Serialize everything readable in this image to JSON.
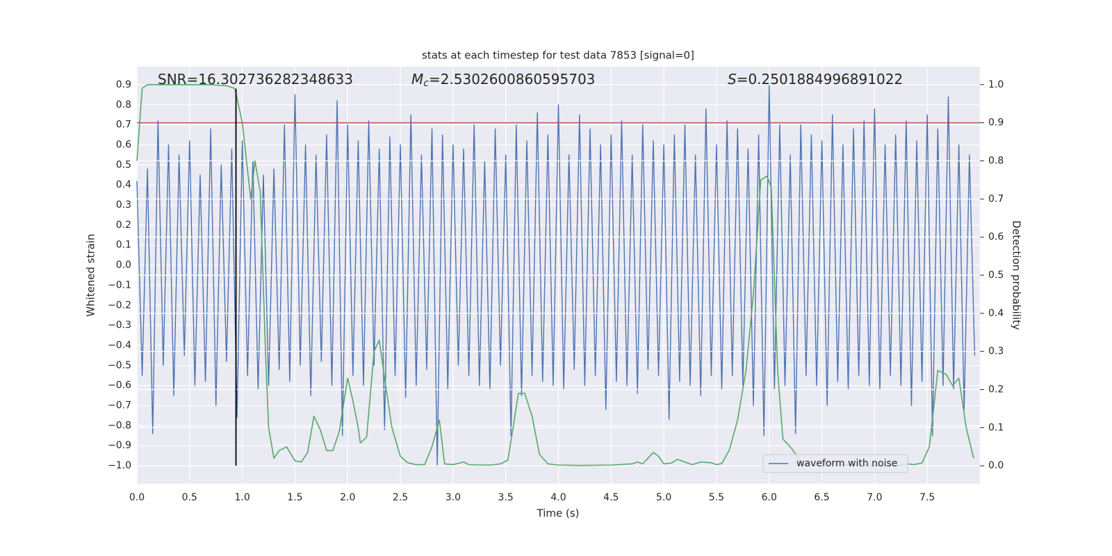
{
  "chart_data": {
    "type": "line",
    "title": "stats at each timestep for test data 7853 [signal=0]",
    "xlabel": "Time (s)",
    "ylabel": "Whitened strain",
    "y2label": "Detection probability",
    "xlim": [
      0,
      8.0
    ],
    "ylim": [
      -1.09,
      0.99
    ],
    "y2lim": [
      -0.047,
      1.047
    ],
    "xticks": [
      {
        "value": 0,
        "label": "0.0"
      },
      {
        "value": 0.5,
        "label": "0.5"
      },
      {
        "value": 1,
        "label": "1.0"
      },
      {
        "value": 1.5,
        "label": "1.5"
      },
      {
        "value": 2,
        "label": "2.0"
      },
      {
        "value": 2.5,
        "label": "2.5"
      },
      {
        "value": 3,
        "label": "3.0"
      },
      {
        "value": 3.5,
        "label": "3.5"
      },
      {
        "value": 4,
        "label": "4.0"
      },
      {
        "value": 4.5,
        "label": "4.5"
      },
      {
        "value": 5,
        "label": "5.0"
      },
      {
        "value": 5.5,
        "label": "5.5"
      },
      {
        "value": 6,
        "label": "6.0"
      },
      {
        "value": 6.5,
        "label": "6.5"
      },
      {
        "value": 7,
        "label": "7.0"
      },
      {
        "value": 7.5,
        "label": "7.5"
      }
    ],
    "yticks": [
      {
        "value": -1.0,
        "label": "−1.0"
      },
      {
        "value": -0.9,
        "label": "−0.9"
      },
      {
        "value": -0.8,
        "label": "−0.8"
      },
      {
        "value": -0.7,
        "label": "−0.7"
      },
      {
        "value": -0.6,
        "label": "−0.6"
      },
      {
        "value": -0.5,
        "label": "−0.5"
      },
      {
        "value": -0.4,
        "label": "−0.4"
      },
      {
        "value": -0.3,
        "label": "−0.3"
      },
      {
        "value": -0.2,
        "label": "−0.2"
      },
      {
        "value": -0.1,
        "label": "−0.1"
      },
      {
        "value": 0,
        "label": "0.0"
      },
      {
        "value": 0.1,
        "label": "0.1"
      },
      {
        "value": 0.2,
        "label": "0.2"
      },
      {
        "value": 0.3,
        "label": "0.3"
      },
      {
        "value": 0.4,
        "label": "0.4"
      },
      {
        "value": 0.5,
        "label": "0.5"
      },
      {
        "value": 0.6,
        "label": "0.6"
      },
      {
        "value": 0.7,
        "label": "0.7"
      },
      {
        "value": 0.8,
        "label": "0.8"
      },
      {
        "value": 0.9,
        "label": "0.9"
      }
    ],
    "y2ticks": [
      {
        "value": 0,
        "label": "0.0"
      },
      {
        "value": 0.1,
        "label": "0.1"
      },
      {
        "value": 0.2,
        "label": "0.2"
      },
      {
        "value": 0.3,
        "label": "0.3"
      },
      {
        "value": 0.4,
        "label": "0.4"
      },
      {
        "value": 0.5,
        "label": "0.5"
      },
      {
        "value": 0.6,
        "label": "0.6"
      },
      {
        "value": 0.7,
        "label": "0.7"
      },
      {
        "value": 0.8,
        "label": "0.8"
      },
      {
        "value": 0.9,
        "label": "0.9"
      },
      {
        "value": 1,
        "label": "1.0"
      }
    ],
    "grid": true,
    "legend": "lower right",
    "annotations": [
      {
        "text": "SNR=16.302736282348633"
      },
      {
        "symbol": "M",
        "subscript": "c",
        "text": "=2.5302600860595703"
      },
      {
        "symbol": "S",
        "text": "=0.2501884996891022"
      }
    ],
    "hlines": [
      {
        "y": 0.9,
        "axis": "y2",
        "color": "#c44e52"
      }
    ],
    "vlines": [
      {
        "x": 0.94,
        "ymin": -1.0,
        "ymax": 0.88,
        "color": "#000000"
      }
    ],
    "series": [
      {
        "name": "waveform with noise",
        "color": "#4c72b0",
        "x": [
          0,
          0.05,
          0.1,
          0.15,
          0.2,
          0.25,
          0.3,
          0.35,
          0.4,
          0.45,
          0.5,
          0.55,
          0.6,
          0.65,
          0.7,
          0.75,
          0.8,
          0.85,
          0.9,
          0.95,
          1,
          1.05,
          1.1,
          1.15,
          1.2,
          1.25,
          1.3,
          1.35,
          1.4,
          1.45,
          1.5,
          1.55,
          1.6,
          1.65,
          1.7,
          1.75,
          1.8,
          1.85,
          1.9,
          1.95,
          2,
          2.05,
          2.1,
          2.15,
          2.2,
          2.25,
          2.3,
          2.35,
          2.4,
          2.45,
          2.5,
          2.55,
          2.6,
          2.65,
          2.7,
          2.75,
          2.8,
          2.85,
          2.9,
          2.95,
          3,
          3.05,
          3.1,
          3.15,
          3.2,
          3.25,
          3.3,
          3.35,
          3.4,
          3.45,
          3.5,
          3.55,
          3.6,
          3.65,
          3.7,
          3.75,
          3.8,
          3.85,
          3.9,
          3.95,
          4,
          4.05,
          4.1,
          4.15,
          4.2,
          4.25,
          4.3,
          4.35,
          4.4,
          4.45,
          4.5,
          4.55,
          4.6,
          4.65,
          4.7,
          4.75,
          4.8,
          4.85,
          4.9,
          4.95,
          5,
          5.05,
          5.1,
          5.15,
          5.2,
          5.25,
          5.3,
          5.35,
          5.4,
          5.45,
          5.5,
          5.55,
          5.6,
          5.65,
          5.7,
          5.75,
          5.8,
          5.85,
          5.9,
          5.95,
          6,
          6.05,
          6.1,
          6.15,
          6.2,
          6.25,
          6.3,
          6.35,
          6.4,
          6.45,
          6.5,
          6.55,
          6.6,
          6.65,
          6.7,
          6.75,
          6.8,
          6.85,
          6.9,
          6.95,
          7,
          7.05,
          7.1,
          7.15,
          7.2,
          7.25,
          7.3,
          7.35,
          7.4,
          7.45,
          7.5,
          7.55,
          7.6,
          7.65,
          7.7,
          7.75,
          7.8,
          7.85,
          7.9,
          7.95
        ],
        "values": [
          0.42,
          -0.55,
          0.48,
          -0.84,
          0.72,
          -0.5,
          0.6,
          -0.65,
          0.55,
          -0.45,
          0.62,
          -0.6,
          0.45,
          -0.58,
          0.68,
          -0.7,
          0.5,
          -0.48,
          0.58,
          -0.76,
          0.62,
          -0.55,
          0.52,
          -0.62,
          0.45,
          -0.6,
          0.48,
          -0.52,
          0.7,
          -0.58,
          0.85,
          -0.5,
          0.6,
          -0.65,
          0.55,
          -0.48,
          0.65,
          -0.6,
          0.82,
          -0.85,
          0.7,
          -0.55,
          0.62,
          -0.6,
          0.72,
          -0.5,
          0.58,
          -0.82,
          0.64,
          -0.55,
          0.6,
          -0.66,
          0.75,
          -0.6,
          0.55,
          -0.52,
          0.68,
          -1.0,
          0.65,
          -0.62,
          0.6,
          -0.5,
          0.58,
          -0.55,
          0.7,
          -0.6,
          0.52,
          -0.62,
          0.68,
          -0.5,
          0.55,
          -0.85,
          0.7,
          -0.65,
          0.62,
          -0.55,
          0.76,
          -0.58,
          0.65,
          -0.6,
          0.8,
          -0.62,
          0.55,
          -0.52,
          0.75,
          -0.6,
          0.68,
          -0.55,
          0.6,
          -0.72,
          0.65,
          -0.58,
          0.72,
          -0.6,
          0.55,
          -0.64,
          0.7,
          -0.52,
          0.62,
          -0.55,
          0.6,
          -0.77,
          0.65,
          -0.58,
          0.7,
          -0.6,
          0.55,
          -0.65,
          0.78,
          -0.55,
          0.6,
          -0.62,
          0.72,
          -0.55,
          0.68,
          -0.6,
          0.58,
          -0.7,
          0.65,
          -0.85,
          0.9,
          -0.62,
          0.7,
          -0.6,
          0.55,
          -0.84,
          0.7,
          -0.55,
          0.65,
          -0.6,
          0.62,
          -0.7,
          0.75,
          -0.58,
          0.6,
          -0.62,
          0.68,
          -0.55,
          0.72,
          -0.6,
          0.78,
          -0.62,
          0.6,
          -0.55,
          0.65,
          -0.6,
          0.72,
          -0.7,
          0.62,
          -0.58,
          0.75,
          -0.85,
          0.68,
          -0.6,
          0.84,
          -0.62,
          0.6,
          -0.72,
          0.55,
          -0.45
        ]
      },
      {
        "color": "#55a868",
        "axis": "y2",
        "x": [
          0,
          0.05,
          0.1,
          0.3,
          0.5,
          0.7,
          0.85,
          0.93,
          1.0,
          1.08,
          1.12,
          1.17,
          1.22,
          1.25,
          1.3,
          1.35,
          1.42,
          1.5,
          1.56,
          1.62,
          1.68,
          1.74,
          1.8,
          1.86,
          1.92,
          2.0,
          2.05,
          2.1,
          2.12,
          2.18,
          2.25,
          2.3,
          2.35,
          2.42,
          2.5,
          2.57,
          2.65,
          2.73,
          2.8,
          2.87,
          2.92,
          3.0,
          3.1,
          3.15,
          3.25,
          3.35,
          3.45,
          3.52,
          3.57,
          3.62,
          3.68,
          3.75,
          3.82,
          3.9,
          4.0,
          4.2,
          4.5,
          4.7,
          4.75,
          4.8,
          4.9,
          4.95,
          5.0,
          5.07,
          5.13,
          5.2,
          5.27,
          5.35,
          5.45,
          5.5,
          5.55,
          5.62,
          5.7,
          5.78,
          5.85,
          5.92,
          5.98,
          6.02,
          6.08,
          6.13,
          6.2,
          6.28,
          6.33,
          6.45,
          6.55,
          6.7,
          6.85,
          7.0,
          7.2,
          7.32,
          7.37,
          7.45,
          7.52,
          7.6,
          7.68,
          7.74,
          7.8,
          7.87,
          7.94
        ],
        "values": [
          0.8,
          0.99,
          1.0,
          1.0,
          1.0,
          1.0,
          0.997,
          0.99,
          0.9,
          0.7,
          0.8,
          0.72,
          0.3,
          0.1,
          0.02,
          0.04,
          0.05,
          0.013,
          0.01,
          0.035,
          0.13,
          0.095,
          0.04,
          0.04,
          0.09,
          0.23,
          0.17,
          0.1,
          0.06,
          0.075,
          0.3,
          0.33,
          0.23,
          0.1,
          0.025,
          0.008,
          0.003,
          0.003,
          0.05,
          0.12,
          0.005,
          0.003,
          0.01,
          0.003,
          0.002,
          0.002,
          0.005,
          0.015,
          0.1,
          0.19,
          0.19,
          0.13,
          0.03,
          0.005,
          0.002,
          0.001,
          0.002,
          0.005,
          0.01,
          0.005,
          0.035,
          0.025,
          0.005,
          0.007,
          0.017,
          0.01,
          0.003,
          0.01,
          0.008,
          0.003,
          0.006,
          0.04,
          0.12,
          0.25,
          0.45,
          0.75,
          0.76,
          0.73,
          0.25,
          0.07,
          0.05,
          0.02,
          0.003,
          0.003,
          0.008,
          0.002,
          0.005,
          0.0,
          0.001,
          0.005,
          0.003,
          0.007,
          0.05,
          0.25,
          0.24,
          0.21,
          0.23,
          0.1,
          0.02
        ]
      }
    ]
  }
}
